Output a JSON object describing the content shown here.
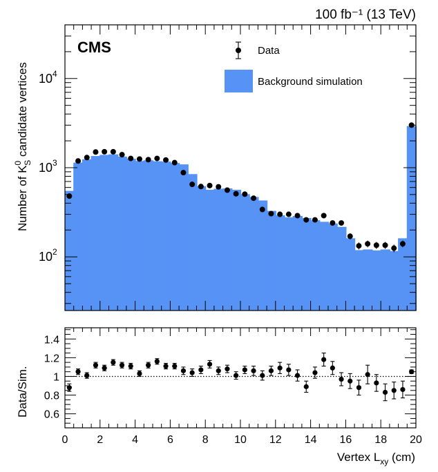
{
  "header": {
    "lumi_label": "100 fb⁻¹ (13 TeV)",
    "experiment": "CMS"
  },
  "legend": {
    "data_label": "Data",
    "background_label": "Background simulation"
  },
  "colors": {
    "background_fill": "#5693f5",
    "data_marker": "#000000"
  },
  "chart_data": [
    {
      "type": "bar",
      "title": "",
      "ylabel": "Number of K⁰_S candidate vertices",
      "xlabel": "",
      "yscale": "log",
      "xlim": [
        0,
        20
      ],
      "ylim": [
        25,
        40000
      ],
      "ytick_labels": [
        {
          "value": 100,
          "base": "10",
          "exp": "2"
        },
        {
          "value": 1000,
          "base": "10",
          "exp": "3"
        },
        {
          "value": 10000,
          "base": "10",
          "exp": "4"
        }
      ],
      "bin_edges": [
        0,
        0.5,
        1,
        1.5,
        2,
        2.5,
        3,
        3.5,
        4,
        4.5,
        5,
        5.5,
        6,
        6.5,
        7,
        7.5,
        8,
        8.5,
        9,
        9.5,
        10,
        10.5,
        11,
        11.5,
        12,
        12.5,
        13,
        13.5,
        14,
        14.5,
        15,
        15.5,
        16,
        16.5,
        17,
        17.5,
        18,
        18.5,
        19,
        19.5,
        20
      ],
      "series": [
        {
          "name": "Background simulation",
          "kind": "filled-histogram",
          "values": [
            545,
            1130,
            1230,
            1340,
            1380,
            1400,
            1320,
            1250,
            1180,
            1200,
            1170,
            1160,
            1120,
            1080,
            840,
            615,
            560,
            575,
            580,
            560,
            500,
            465,
            425,
            325,
            290,
            275,
            285,
            270,
            255,
            245,
            235,
            215,
            160,
            118,
            120,
            117,
            120,
            115,
            160,
            2900
          ]
        },
        {
          "name": "Data",
          "kind": "points-with-errors",
          "x": [
            0.25,
            0.75,
            1.25,
            1.75,
            2.25,
            2.75,
            3.25,
            3.75,
            4.25,
            4.75,
            5.25,
            5.75,
            6.25,
            6.75,
            7.25,
            7.75,
            8.25,
            8.75,
            9.25,
            9.75,
            10.25,
            10.75,
            11.25,
            11.75,
            12.25,
            12.75,
            13.25,
            13.75,
            14.25,
            14.75,
            15.25,
            15.75,
            16.25,
            16.75,
            17.25,
            17.75,
            18.25,
            18.75,
            19.25,
            19.75
          ],
          "values": [
            480,
            1190,
            1300,
            1500,
            1510,
            1510,
            1400,
            1270,
            1250,
            1230,
            1270,
            1220,
            1140,
            880,
            650,
            615,
            630,
            610,
            560,
            510,
            505,
            455,
            340,
            305,
            300,
            300,
            290,
            260,
            260,
            290,
            240,
            240,
            170,
            133,
            140,
            135,
            135,
            125,
            140,
            3000
          ],
          "err_low": [
            30,
            50,
            50,
            50,
            50,
            50,
            50,
            50,
            50,
            50,
            50,
            50,
            50,
            40,
            25,
            25,
            25,
            25,
            25,
            20,
            20,
            20,
            15,
            15,
            15,
            15,
            15,
            15,
            15,
            15,
            15,
            15,
            13,
            12,
            12,
            12,
            12,
            12,
            12,
            60
          ],
          "err_high": [
            30,
            50,
            50,
            50,
            50,
            50,
            50,
            50,
            50,
            50,
            50,
            50,
            50,
            40,
            25,
            25,
            25,
            25,
            25,
            20,
            20,
            20,
            15,
            15,
            15,
            15,
            15,
            15,
            15,
            15,
            15,
            15,
            13,
            12,
            12,
            12,
            12,
            12,
            12,
            60
          ]
        }
      ]
    },
    {
      "type": "scatter",
      "title": "",
      "ylabel": "Data/Sim.",
      "xlabel": "Vertex L_xy (cm)",
      "xlim": [
        0,
        20
      ],
      "ylim": [
        0.45,
        1.52
      ],
      "reference_line": 1,
      "xtick_labels": [
        "0",
        "2",
        "4",
        "6",
        "8",
        "10",
        "12",
        "14",
        "16",
        "18",
        "20"
      ],
      "ytick_labels": [
        "0.6",
        "0.8",
        "1",
        "1.2",
        "1.4"
      ],
      "series": [
        {
          "name": "Data/Sim.",
          "x": [
            0.25,
            0.75,
            1.25,
            1.75,
            2.25,
            2.75,
            3.25,
            3.75,
            4.25,
            4.75,
            5.25,
            5.75,
            6.25,
            6.75,
            7.25,
            7.75,
            8.25,
            8.75,
            9.25,
            9.75,
            10.25,
            10.75,
            11.25,
            11.75,
            12.25,
            12.75,
            13.25,
            13.75,
            14.25,
            14.75,
            15.25,
            15.75,
            16.25,
            16.75,
            17.25,
            17.75,
            18.25,
            18.75,
            19.25,
            19.75
          ],
          "values": [
            0.88,
            1.05,
            1.01,
            1.12,
            1.09,
            1.15,
            1.12,
            1.11,
            1.03,
            1.12,
            1.16,
            1.11,
            1.11,
            1.06,
            1.04,
            1.07,
            1.13,
            1.06,
            1.08,
            1.01,
            1.07,
            1.06,
            1.01,
            1.06,
            1.09,
            1.07,
            1.01,
            0.89,
            1.04,
            1.18,
            1.09,
            0.97,
            0.95,
            0.88,
            1.02,
            0.93,
            0.83,
            0.85,
            0.86,
            1.05
          ],
          "err": [
            0.04,
            0.03,
            0.03,
            0.03,
            0.03,
            0.03,
            0.03,
            0.03,
            0.03,
            0.03,
            0.03,
            0.03,
            0.03,
            0.04,
            0.04,
            0.04,
            0.04,
            0.04,
            0.04,
            0.04,
            0.04,
            0.05,
            0.05,
            0.05,
            0.06,
            0.06,
            0.06,
            0.06,
            0.06,
            0.07,
            0.07,
            0.07,
            0.08,
            0.08,
            0.1,
            0.09,
            0.09,
            0.09,
            0.09,
            0.02
          ]
        }
      ]
    }
  ]
}
